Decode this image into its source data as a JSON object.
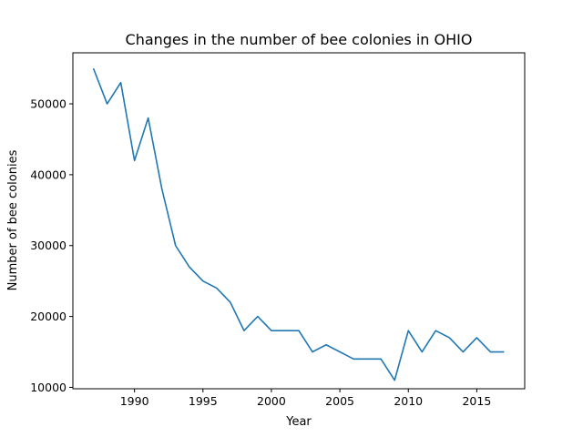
{
  "chart_data": {
    "type": "line",
    "title": "Changes in the number of bee colonies in OHIO",
    "xlabel": "Year",
    "ylabel": "Number of bee colonies",
    "xlim": [
      1985.5,
      2018.5
    ],
    "ylim": [
      9800,
      57200
    ],
    "xticks": [
      1990,
      1995,
      2000,
      2005,
      2010,
      2015
    ],
    "yticks": [
      10000,
      20000,
      30000,
      40000,
      50000
    ],
    "grid": false,
    "line_color": "#1f77b4",
    "series": [
      {
        "x": [
          1987,
          1988,
          1989,
          1990,
          1991,
          1992,
          1993,
          1994,
          1995,
          1996,
          1997,
          1998,
          1999,
          2000,
          2001,
          2002,
          2003,
          2004,
          2005,
          2006,
          2007,
          2008,
          2009,
          2010,
          2011,
          2012,
          2013,
          2014,
          2015,
          2016,
          2017
        ],
        "values": [
          55000,
          50000,
          53000,
          42000,
          48000,
          38000,
          30000,
          27000,
          25000,
          24000,
          22000,
          18000,
          20000,
          18000,
          18000,
          18000,
          15000,
          16000,
          15000,
          14000,
          14000,
          14000,
          11000,
          18000,
          15000,
          18000,
          17000,
          15000,
          17000,
          15000,
          15000
        ]
      }
    ]
  }
}
